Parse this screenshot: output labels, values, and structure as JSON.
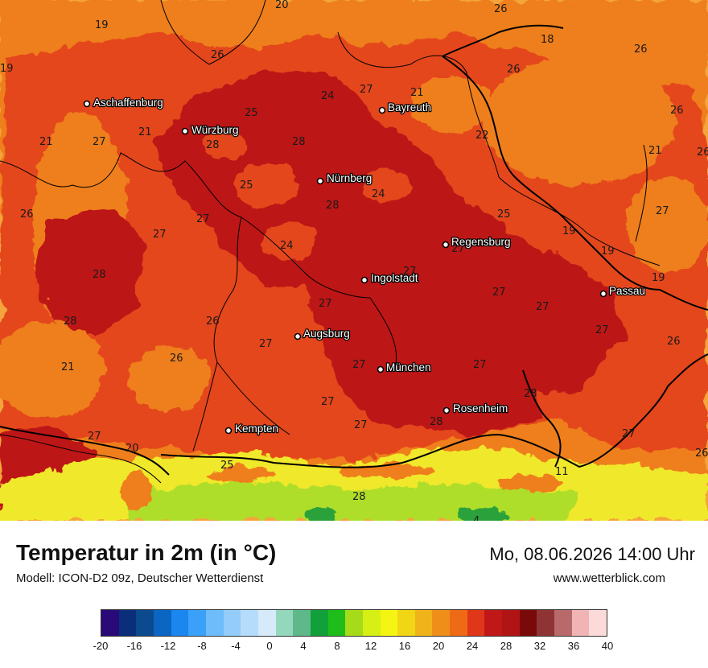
{
  "title": "Temperatur in 2m (in °C)",
  "model": "Modell: ICON-D2 09z, Deutscher Wetterdienst",
  "datetime": "Mo, 08.06.2026 14:00 Uhr",
  "website": "www.wetterblick.com",
  "colors": {
    "background": "#f4a43a",
    "warm_orange": "#ee7f1c",
    "red_orange": "#e4461a",
    "deep_red": "#bd1717",
    "alpine_yellow": "#f0e82a",
    "alpine_green": "#aede2c",
    "alpine_deep_green": "#2aa13a",
    "border_line": "#000000"
  },
  "cities": [
    {
      "name": "Aschaffenburg"
    },
    {
      "name": "Würzburg"
    },
    {
      "name": "Bayreuth"
    },
    {
      "name": "Nürnberg"
    },
    {
      "name": "Regensburg"
    },
    {
      "name": "Ingolstadt"
    },
    {
      "name": "Passau"
    },
    {
      "name": "Augsburg"
    },
    {
      "name": "München"
    },
    {
      "name": "Rosenheim"
    },
    {
      "name": "Kempten"
    }
  ],
  "temperature_labels": [
    "20",
    "26",
    "19",
    "19",
    "26",
    "18",
    "26",
    "26",
    "26",
    "21",
    "24",
    "27",
    "25",
    "28",
    "21",
    "27",
    "21",
    "28",
    "22",
    "21",
    "26",
    "25",
    "24",
    "28",
    "26",
    "27",
    "27",
    "25",
    "27",
    "19",
    "24",
    "27",
    "19",
    "28",
    "19",
    "27",
    "27",
    "27",
    "28",
    "26",
    "27",
    "27",
    "26",
    "27",
    "21",
    "26",
    "27",
    "27",
    "27",
    "20",
    "28",
    "27",
    "27",
    "25",
    "11",
    "26",
    "27",
    "28",
    "28",
    "4"
  ],
  "legend": {
    "colors": [
      "#2a0a78",
      "#0a2e7a",
      "#0b4a8e",
      "#0a66c2",
      "#1a86ee",
      "#3aa0f8",
      "#6fbcfa",
      "#94cdfb",
      "#b5dcfb",
      "#d6eaf9",
      "#93d8bc",
      "#5fb88a",
      "#12a03a",
      "#1ebd1a",
      "#a6db1a",
      "#d6ef14",
      "#f5f514",
      "#f0d614",
      "#f0b41a",
      "#f08e1a",
      "#ee6a14",
      "#e0361a",
      "#c01818",
      "#b01414",
      "#7a0a0a",
      "#8e3434",
      "#b86a6a",
      "#f0b4b4",
      "#fcdada"
    ],
    "ticks": [
      "-20",
      "-16",
      "-12",
      "-8",
      "-4",
      "0",
      "4",
      "8",
      "12",
      "16",
      "20",
      "24",
      "28",
      "32",
      "36",
      "40"
    ]
  }
}
